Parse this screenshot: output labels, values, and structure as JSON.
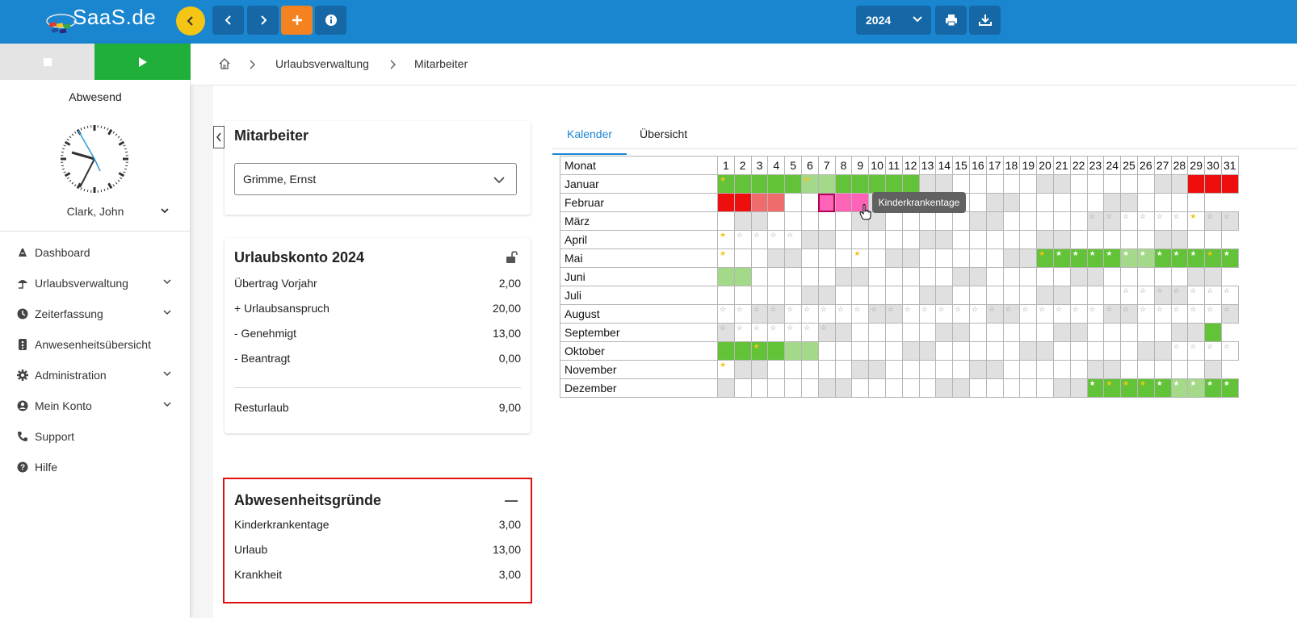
{
  "header": {
    "logo_text": "SaaS.de",
    "year": "2024"
  },
  "sidebar": {
    "status": "Abwesend",
    "user": "Clark, John",
    "items": [
      {
        "label": "Dashboard",
        "icon": "dashboard-icon"
      },
      {
        "label": "Urlaubsverwaltung",
        "icon": "beach-umbrella-icon",
        "expandable": true
      },
      {
        "label": "Zeiterfassung",
        "icon": "clock-icon",
        "expandable": true
      },
      {
        "label": "Anwesenheitsübersicht",
        "icon": "attendance-icon"
      },
      {
        "label": "Administration",
        "icon": "gear-icon",
        "expandable": true
      },
      {
        "label": "Mein Konto",
        "icon": "account-icon",
        "expandable": true
      },
      {
        "label": "Support",
        "icon": "phone-icon"
      },
      {
        "label": "Hilfe",
        "icon": "help-icon"
      }
    ]
  },
  "breadcrumb": {
    "items": [
      "Urlaubsverwaltung",
      "Mitarbeiter"
    ]
  },
  "employee_card": {
    "title": "Mitarbeiter",
    "selected": "Grimme, Ernst"
  },
  "account_card": {
    "title": "Urlaubskonto 2024",
    "rows": [
      {
        "label": "Übertrag Vorjahr",
        "value": "2,00"
      },
      {
        "label": "+ Urlaubsanspruch",
        "value": "20,00"
      },
      {
        "label": "- Genehmigt",
        "value": "13,00"
      },
      {
        "label": "- Beantragt",
        "value": "0,00"
      }
    ],
    "rest_label": "Resturlaub",
    "rest_value": "9,00"
  },
  "reasons_card": {
    "title": "Abwesenheitsgründe",
    "rows": [
      {
        "label": "Kinderkrankentage",
        "value": "3,00"
      },
      {
        "label": "Urlaub",
        "value": "13,00"
      },
      {
        "label": "Krankheit",
        "value": "3,00"
      }
    ]
  },
  "tabs": [
    "Kalender",
    "Übersicht"
  ],
  "calendar": {
    "header": "Monat",
    "days": [
      "1",
      "2",
      "3",
      "4",
      "5",
      "6",
      "7",
      "8",
      "9",
      "10",
      "11",
      "12",
      "13",
      "14",
      "15",
      "16",
      "17",
      "18",
      "19",
      "20",
      "21",
      "22",
      "23",
      "24",
      "25",
      "26",
      "27",
      "28",
      "29",
      "30",
      "31"
    ],
    "months": [
      {
        "name": "Januar",
        "days": 31,
        "cells": {
          "1": "g",
          "2": "g",
          "3": "g",
          "4": "g",
          "5": "g",
          "6": "lg",
          "7": "lg",
          "8": "g",
          "9": "g",
          "10": "g",
          "11": "g",
          "12": "g",
          "13": "we",
          "14": "we",
          "20": "we",
          "21": "we",
          "27": "we",
          "28": "we",
          "29": "r",
          "30": "r",
          "31": "r"
        },
        "stars": {
          "1": "y",
          "6": "y"
        }
      },
      {
        "name": "Februar",
        "days": 29,
        "cells": {
          "1": "r",
          "2": "r",
          "3": "lr",
          "4": "lr",
          "7": "pkb",
          "8": "pk",
          "9": "pk",
          "10": "we",
          "11": "we",
          "17": "we",
          "18": "we",
          "24": "we",
          "25": "we"
        },
        "stars": {}
      },
      {
        "name": "März",
        "days": 31,
        "cells": {
          "2": "we",
          "3": "we",
          "9": "we",
          "10": "we",
          "16": "we",
          "17": "we",
          "23": "we",
          "24": "we",
          "30": "we",
          "31": "we"
        },
        "stars": {
          "23": "o",
          "24": "o",
          "25": "o",
          "26": "o",
          "27": "o",
          "28": "o",
          "29": "y",
          "30": "o",
          "31": "o"
        }
      },
      {
        "name": "April",
        "days": 30,
        "cells": {
          "6": "we",
          "7": "we",
          "13": "we",
          "14": "we",
          "20": "we",
          "21": "we",
          "27": "we",
          "28": "we"
        },
        "stars": {
          "1": "y",
          "2": "o",
          "3": "o",
          "4": "o",
          "5": "o"
        }
      },
      {
        "name": "Mai",
        "days": 31,
        "cells": {
          "4": "we",
          "5": "we",
          "11": "we",
          "12": "we",
          "18": "we",
          "19": "we",
          "20": "g",
          "21": "g",
          "22": "g",
          "23": "g",
          "24": "g",
          "25": "lg",
          "26": "lg",
          "27": "g",
          "28": "g",
          "29": "g",
          "30": "g",
          "31": "g"
        },
        "stars": {
          "1": "y",
          "9": "y",
          "20": "y",
          "21": "w",
          "22": "w",
          "23": "w",
          "24": "w",
          "25": "w",
          "26": "w",
          "27": "w",
          "28": "w",
          "29": "w",
          "30": "y",
          "31": "w"
        }
      },
      {
        "name": "Juni",
        "days": 30,
        "cells": {
          "1": "lg",
          "2": "lg",
          "8": "we",
          "9": "we",
          "15": "we",
          "16": "we",
          "22": "we",
          "23": "we",
          "29": "we",
          "30": "we"
        },
        "stars": {}
      },
      {
        "name": "Juli",
        "days": 31,
        "cells": {
          "6": "we",
          "7": "we",
          "13": "we",
          "14": "we",
          "20": "we",
          "21": "we",
          "27": "we",
          "28": "we"
        },
        "stars": {
          "25": "o",
          "26": "o",
          "27": "o",
          "28": "o",
          "29": "o",
          "30": "o",
          "31": "o"
        }
      },
      {
        "name": "August",
        "days": 31,
        "cells": {
          "3": "we",
          "4": "we",
          "10": "we",
          "11": "we",
          "17": "we",
          "18": "we",
          "24": "we",
          "25": "we",
          "31": "we"
        },
        "stars": {
          "1": "o",
          "2": "o",
          "3": "o",
          "4": "o",
          "5": "o",
          "6": "o",
          "7": "o",
          "8": "o",
          "9": "o",
          "10": "o",
          "11": "o",
          "12": "o",
          "13": "o",
          "14": "o",
          "15": "o",
          "16": "o",
          "17": "o",
          "18": "o",
          "19": "o",
          "20": "o",
          "21": "o",
          "22": "o",
          "23": "o",
          "24": "o",
          "25": "o",
          "26": "o",
          "27": "o",
          "28": "o",
          "29": "o",
          "30": "o",
          "31": "o"
        }
      },
      {
        "name": "September",
        "days": 30,
        "cells": {
          "1": "we",
          "7": "we",
          "8": "we",
          "14": "we",
          "15": "we",
          "21": "we",
          "22": "we",
          "28": "we",
          "29": "we",
          "30": "g"
        },
        "stars": {
          "1": "o",
          "2": "o",
          "3": "o",
          "4": "o",
          "5": "o",
          "6": "o",
          "7": "o"
        }
      },
      {
        "name": "Oktober",
        "days": 31,
        "cells": {
          "1": "g",
          "2": "g",
          "3": "g",
          "4": "g",
          "5": "lg",
          "6": "lg",
          "12": "we",
          "13": "we",
          "19": "we",
          "20": "we",
          "26": "we",
          "27": "we"
        },
        "stars": {
          "3": "y",
          "28": "o",
          "29": "o",
          "30": "o",
          "31": "o"
        }
      },
      {
        "name": "November",
        "days": 30,
        "cells": {
          "2": "we",
          "3": "we",
          "9": "we",
          "10": "we",
          "16": "we",
          "17": "we",
          "23": "we",
          "24": "we",
          "30": "we"
        },
        "stars": {
          "1": "y"
        }
      },
      {
        "name": "Dezember",
        "days": 31,
        "cells": {
          "1": "we",
          "7": "we",
          "8": "we",
          "14": "we",
          "15": "we",
          "21": "we",
          "22": "we",
          "23": "g",
          "24": "g",
          "25": "g",
          "26": "g",
          "27": "g",
          "28": "lg",
          "29": "lg",
          "30": "g",
          "31": "g"
        },
        "stars": {
          "23": "w",
          "24": "y",
          "25": "y",
          "26": "y",
          "27": "w",
          "28": "w",
          "29": "w",
          "30": "w",
          "31": "w"
        }
      }
    ]
  },
  "tooltip": "Kinderkrankentage",
  "colors": {
    "topbar": "#1a86d0",
    "vacation": "#62c338",
    "vacation_light": "#a5d98a",
    "sick": "#ee0e0e",
    "child_sick": "#ff63b8",
    "weekend": "#e0e0e0"
  }
}
